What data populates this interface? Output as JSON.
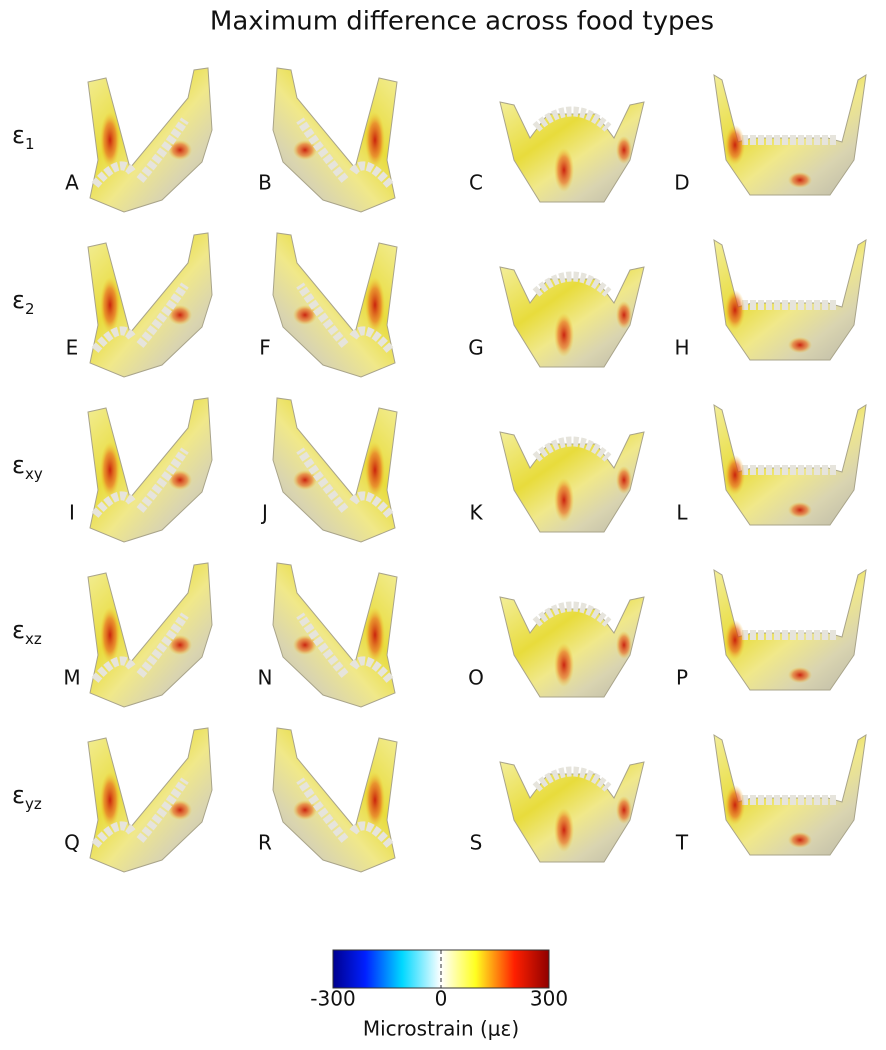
{
  "title": "Maximum difference across food types",
  "rows": [
    {
      "symbol": "ε",
      "subscript": "1",
      "panels": [
        "A",
        "B",
        "C",
        "D"
      ]
    },
    {
      "symbol": "ε",
      "subscript": "2",
      "panels": [
        "E",
        "F",
        "G",
        "H"
      ]
    },
    {
      "symbol": "ε",
      "subscript": "xy",
      "panels": [
        "I",
        "J",
        "K",
        "L"
      ]
    },
    {
      "symbol": "ε",
      "subscript": "xz",
      "panels": [
        "M",
        "N",
        "O",
        "P"
      ]
    },
    {
      "symbol": "ε",
      "subscript": "yz",
      "panels": [
        "Q",
        "R",
        "S",
        "T"
      ]
    }
  ],
  "colorbar": {
    "label": "Microstrain (με)",
    "lim": [
      -300,
      300
    ],
    "ticks": [
      -300,
      0,
      300
    ]
  }
}
